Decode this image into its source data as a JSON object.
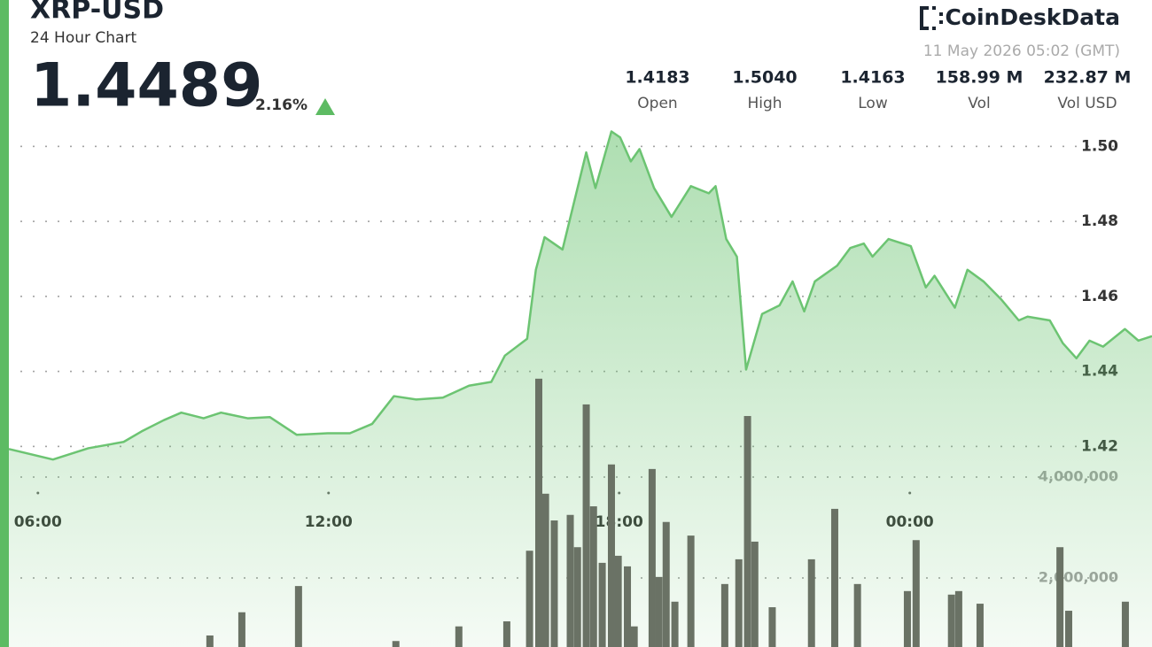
{
  "header": {
    "symbol": "XRP-USD",
    "period": "24 Hour Chart",
    "price": "1.4489",
    "change": "2.16%",
    "brand": "CoinDeskData",
    "timestamp": "11 May 2026 05:02 (GMT)",
    "stats": [
      {
        "value": "1.4183",
        "label": "Open"
      },
      {
        "value": "1.5040",
        "label": "High"
      },
      {
        "value": "1.4163",
        "label": "Low"
      },
      {
        "value": "158.99 M",
        "label": "Vol"
      },
      {
        "value": "232.87 M",
        "label": "Vol USD"
      }
    ]
  },
  "chart_data": {
    "type": "area",
    "xlim": [
      5.4,
      29.0
    ],
    "xticks": [
      {
        "value": 6,
        "label": "06:00"
      },
      {
        "value": 12,
        "label": "12:00"
      },
      {
        "value": 18,
        "label": "18:00"
      },
      {
        "value": 24,
        "label": "00:00"
      }
    ],
    "ylim": [
      1.358,
      1.506
    ],
    "yticks": [
      1.42,
      1.44,
      1.46,
      1.48,
      {
        "value": 1.5,
        "label": "1.50"
      }
    ],
    "y2lim": [
      0,
      11000000
    ],
    "y2ticks": [
      {
        "value": 2000000,
        "label": "2,000,000"
      },
      {
        "value": 4000000,
        "label": "4,000,000"
      }
    ],
    "grid": true,
    "series": [
      {
        "type": "area",
        "color": "#6cc472",
        "x": [
          5.4,
          6.31,
          7.04,
          7.77,
          8.14,
          8.6,
          8.96,
          9.42,
          9.78,
          10.33,
          10.79,
          11.34,
          11.98,
          12.44,
          12.9,
          13.35,
          13.81,
          14.36,
          14.9,
          15.36,
          15.64,
          16.1,
          16.28,
          16.46,
          16.83,
          17.32,
          17.51,
          17.84,
          18.02,
          18.24,
          18.42,
          18.72,
          19.08,
          19.48,
          19.85,
          19.99,
          20.21,
          20.43,
          20.62,
          20.95,
          21.31,
          21.58,
          21.82,
          22.04,
          22.5,
          22.77,
          23.05,
          23.23,
          23.56,
          24.02,
          24.33,
          24.51,
          24.93,
          25.19,
          25.52,
          25.88,
          26.25,
          26.43,
          26.89,
          27.16,
          27.44,
          27.71,
          27.99,
          28.44,
          28.72,
          29.0
        ],
        "values": [
          1.4193,
          1.4165,
          1.4195,
          1.4212,
          1.424,
          1.427,
          1.429,
          1.4275,
          1.429,
          1.4275,
          1.4278,
          1.4231,
          1.4235,
          1.4235,
          1.426,
          1.4334,
          1.4325,
          1.433,
          1.4362,
          1.4372,
          1.4442,
          1.4487,
          1.4671,
          1.4758,
          1.4725,
          1.4984,
          1.4889,
          1.504,
          1.5024,
          1.496,
          1.4993,
          1.4889,
          1.4812,
          1.4894,
          1.4875,
          1.4894,
          1.4753,
          1.4706,
          1.4405,
          1.4553,
          1.4576,
          1.464,
          1.456,
          1.464,
          1.4682,
          1.4729,
          1.4741,
          1.4706,
          1.4753,
          1.4734,
          1.4624,
          1.4655,
          1.457,
          1.4671,
          1.464,
          1.4593,
          1.4536,
          1.4546,
          1.4536,
          1.4475,
          1.4435,
          1.4482,
          1.4466,
          1.4513,
          1.4482,
          1.4494
        ]
      },
      {
        "type": "bar",
        "axis": "y2",
        "color": "#6a7265",
        "x": [
          9.55,
          10.21,
          11.38,
          13.39,
          14.69,
          15.68,
          16.15,
          16.34,
          16.48,
          16.66,
          16.99,
          17.14,
          17.32,
          17.47,
          17.65,
          17.84,
          17.98,
          18.17,
          18.31,
          18.68,
          18.82,
          18.97,
          19.15,
          19.48,
          20.18,
          20.47,
          20.65,
          20.8,
          21.16,
          21.97,
          22.45,
          22.92,
          23.95,
          24.13,
          24.86,
          25.01,
          25.45,
          27.1,
          27.28,
          28.45
        ],
        "values": [
          860000,
          1320000,
          1840000,
          750000,
          1040000,
          1140000,
          2540000,
          5950000,
          3670000,
          3140000,
          3250000,
          2610000,
          5440000,
          3420000,
          2300000,
          4250000,
          2440000,
          2230000,
          1040000,
          4160000,
          2020000,
          3110000,
          1530000,
          2840000,
          1880000,
          2370000,
          5210000,
          2720000,
          1420000,
          2370000,
          3370000,
          1880000,
          1740000,
          2750000,
          1670000,
          1740000,
          1490000,
          2610000,
          1350000,
          1530000
        ]
      }
    ]
  }
}
